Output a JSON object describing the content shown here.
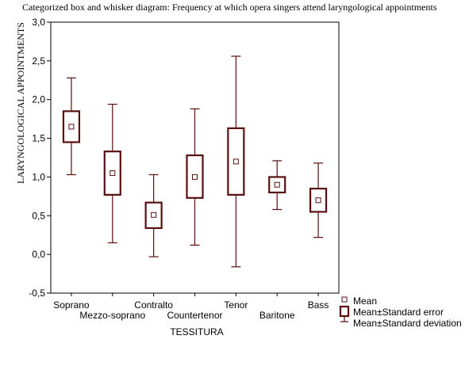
{
  "chart_data": {
    "type": "box",
    "title": "Categorized box and whisker diagram: Frequency at which opera singers attend laryngological appointments",
    "xlabel": "TESSITURA",
    "ylabel": "LARYNGOLOGICAL APPOINTMENTS",
    "ylim": [
      -0.5,
      3.0
    ],
    "yticks": [
      "-0,5",
      "0,0",
      "0,5",
      "1,0",
      "1,5",
      "2,0",
      "2,5",
      "3,0"
    ],
    "categories": [
      "Soprano",
      "Mezzo-soprano",
      "Contralto",
      "Countertenor",
      "Tenor",
      "Baritone",
      "Bass"
    ],
    "series": [
      {
        "category": "Soprano",
        "mean": 1.65,
        "se_low": 1.45,
        "se_high": 1.85,
        "sd_low": 1.03,
        "sd_high": 2.28
      },
      {
        "category": "Mezzo-soprano",
        "mean": 1.05,
        "se_low": 0.77,
        "se_high": 1.33,
        "sd_low": 0.15,
        "sd_high": 1.94
      },
      {
        "category": "Contralto",
        "mean": 0.51,
        "se_low": 0.34,
        "se_high": 0.67,
        "sd_low": -0.03,
        "sd_high": 1.03
      },
      {
        "category": "Countertenor",
        "mean": 1.0,
        "se_low": 0.73,
        "se_high": 1.28,
        "sd_low": 0.12,
        "sd_high": 1.88
      },
      {
        "category": "Tenor",
        "mean": 1.2,
        "se_low": 0.77,
        "se_high": 1.63,
        "sd_low": -0.16,
        "sd_high": 2.56
      },
      {
        "category": "Baritone",
        "mean": 0.9,
        "se_low": 0.8,
        "se_high": 1.0,
        "sd_low": 0.58,
        "sd_high": 1.21
      },
      {
        "category": "Bass",
        "mean": 0.7,
        "se_low": 0.55,
        "se_high": 0.85,
        "sd_low": 0.22,
        "sd_high": 1.18
      }
    ],
    "legend": {
      "position": "bottom-right",
      "items": [
        "Mean",
        "Mean±Standard error",
        "Mean±Standard deviation"
      ]
    },
    "colors": {
      "box": "#5a0f0f",
      "axis": "#000000"
    }
  }
}
